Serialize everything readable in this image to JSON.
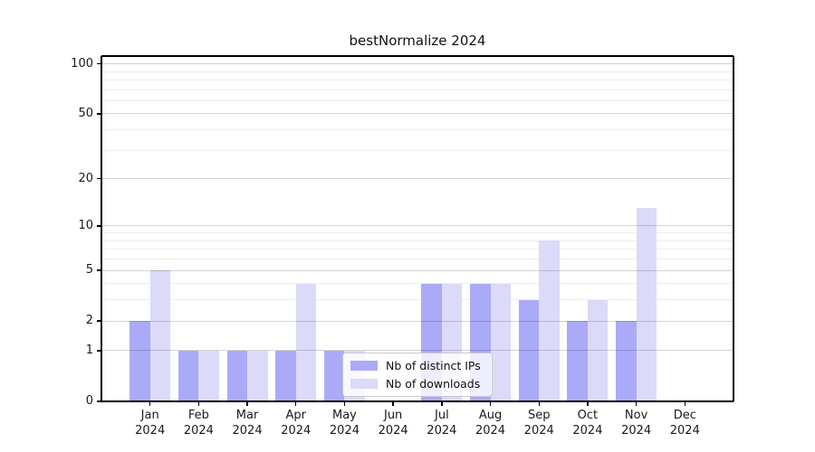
{
  "title": "bestNormalize 2024",
  "colors": {
    "distinct_ips": "#abaaf8",
    "downloads": "#dbdaf8",
    "axis": "#000000",
    "grid_major": "rgba(0,0,0,0.17)",
    "grid_minor": "rgba(0,0,0,0.07)",
    "legend_border": "#cccccc",
    "background": "#ffffff"
  },
  "legend": {
    "items": [
      {
        "label": "Nb of distinct IPs"
      },
      {
        "label": "Nb of downloads"
      }
    ]
  },
  "chart_data": {
    "type": "bar",
    "title": "bestNormalize 2024",
    "categories": [
      "Jan 2024",
      "Feb 2024",
      "Mar 2024",
      "Apr 2024",
      "May 2024",
      "Jun 2024",
      "Jul 2024",
      "Aug 2024",
      "Sep 2024",
      "Oct 2024",
      "Nov 2024",
      "Dec 2024"
    ],
    "series": [
      {
        "name": "Nb of distinct IPs",
        "color": "#abaaf8",
        "values": [
          2,
          1,
          1,
          1,
          1,
          0,
          4,
          4,
          3,
          2,
          2,
          0
        ]
      },
      {
        "name": "Nb of downloads",
        "color": "#dbdaf8",
        "values": [
          5,
          1,
          1,
          4,
          1,
          0,
          4,
          4,
          8,
          3,
          13,
          0
        ]
      }
    ],
    "xlabel": "",
    "ylabel": "",
    "yscale": "log1p-symlog",
    "ylim": [
      0,
      100
    ],
    "y_major_ticks": [
      0,
      1,
      2,
      5,
      10,
      20,
      50,
      100
    ],
    "y_minor_ticks": [
      3,
      4,
      6,
      7,
      8,
      9,
      30,
      40,
      60,
      70,
      80,
      90
    ],
    "grid": "horizontal, drawn above bars",
    "legend_position": "inside lower-center"
  }
}
